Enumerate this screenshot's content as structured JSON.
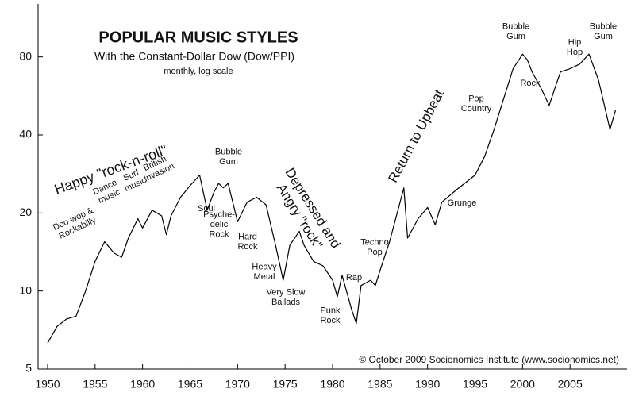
{
  "chart_data": {
    "type": "line",
    "title": "POPULAR MUSIC STYLES",
    "subtitle": "With the Constant-Dollar Dow (Dow/PPI)",
    "note": "monthly, log scale",
    "credit": "© October 2009 Socionomics Institute (www.socionomics.net)",
    "x": [
      1950,
      1951,
      1952,
      1953,
      1954,
      1955,
      1956,
      1957,
      1957.8,
      1958.5,
      1959.5,
      1960,
      1961,
      1962,
      1962.5,
      1963,
      1964,
      1965,
      1966,
      1966.8,
      1967.5,
      1968,
      1968.5,
      1969,
      1970,
      1971,
      1972,
      1973,
      1974,
      1974.8,
      1975.5,
      1976.5,
      1977,
      1978,
      1979,
      1980,
      1980.5,
      1981,
      1982,
      1982.5,
      1983,
      1984,
      1984.5,
      1985,
      1986,
      1987.5,
      1987.9,
      1989,
      1990,
      1990.8,
      1991.5,
      1993,
      1995,
      1996,
      1997,
      1998,
      1999,
      2000,
      2000.5,
      2001,
      2002,
      2002.8,
      2003.5,
      2004,
      2005,
      2006,
      2007,
      2008,
      2009.2,
      2009.8
    ],
    "values": [
      6.3,
      7.3,
      7.8,
      8,
      10,
      13,
      15.5,
      14,
      13.5,
      16,
      19,
      17.5,
      20.5,
      19.5,
      16.5,
      19.5,
      23,
      25.5,
      28,
      20.5,
      24,
      26,
      25,
      26,
      18.5,
      22,
      23,
      21.5,
      15,
      11,
      15,
      17,
      15,
      13,
      12.5,
      11,
      9.5,
      11.5,
      8.5,
      7.5,
      10.5,
      11,
      10.5,
      12,
      15.5,
      25,
      16,
      19,
      21,
      18,
      22,
      24.5,
      28,
      33,
      42,
      55,
      72,
      82,
      78,
      70,
      60,
      52,
      62,
      70,
      72,
      75,
      82,
      65,
      42,
      50
    ],
    "color": "#000000",
    "log_scale": true,
    "xlim": [
      1949,
      2011
    ],
    "xticks": [
      1950,
      1955,
      1960,
      1965,
      1970,
      1975,
      1980,
      1985,
      1990,
      1995,
      2000,
      2005
    ],
    "ylim": [
      5,
      128
    ],
    "yticks": [
      5,
      10,
      20,
      40,
      80
    ],
    "annotations": [
      [
        "Happy \"rock-n-roll\""
      ],
      [
        "Doo-wop &",
        "Rockabilly"
      ],
      [
        "Dance",
        "music"
      ],
      [
        "Surf",
        "music"
      ],
      [
        "British",
        "Invasion"
      ],
      [
        "Bubble",
        "Gum"
      ],
      [
        "Soul"
      ],
      [
        "Psyche-",
        "delic",
        "Rock"
      ],
      [
        "Hard",
        "Rock"
      ],
      [
        "Heavy",
        "Metal"
      ],
      [
        "Very Slow",
        "Ballads"
      ],
      [
        "Depressed and",
        "Angry \"rock\""
      ],
      [
        "Punk",
        "Rock"
      ],
      [
        "Rap"
      ],
      [
        "Techno",
        "Pop"
      ],
      [
        "Return to Upbeat"
      ],
      [
        "Grunge"
      ],
      [
        "Pop",
        "Country"
      ],
      [
        "Bubble",
        "Gum"
      ],
      [
        "Rock"
      ],
      [
        "Hip",
        "Hop"
      ],
      [
        "Bubble",
        "Gum"
      ]
    ]
  }
}
